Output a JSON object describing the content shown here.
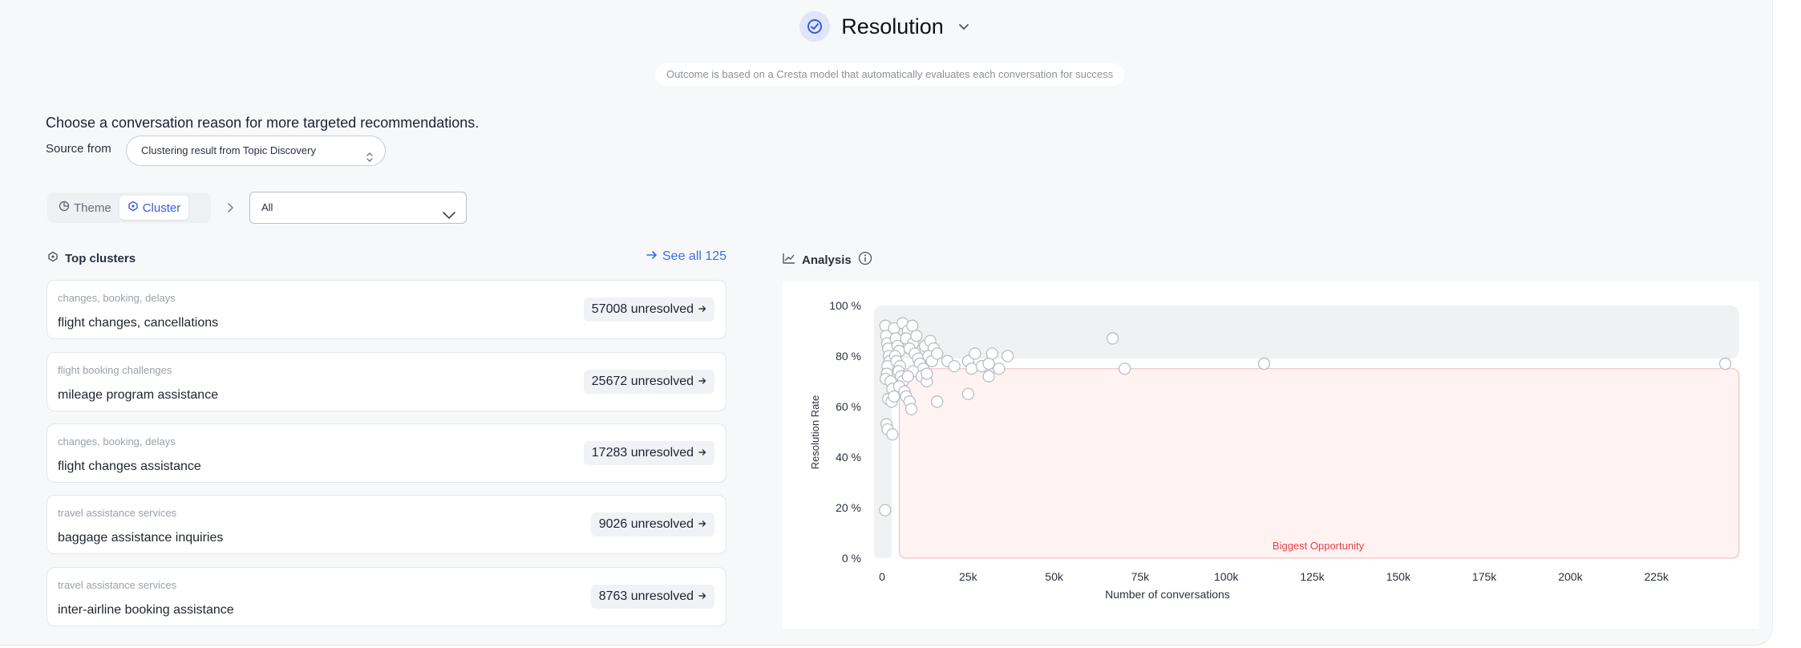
{
  "header": {
    "title": "Resolution",
    "icon": "check-badge-icon",
    "subtitle": "Outcome is based on a Cresta model that automatically evaluates each conversation for success"
  },
  "filters": {
    "prompt": "Choose a conversation reason for more targeted recommendations.",
    "source_label": "Source from",
    "source_value": "Clustering result from Topic Discovery",
    "toggle": [
      {
        "label": "Theme",
        "icon": "theme-icon",
        "active": false
      },
      {
        "label": "Cluster",
        "icon": "cluster-icon",
        "active": true
      }
    ],
    "cluster_select_value": "All"
  },
  "clusters": {
    "title": "Top clusters",
    "see_all": "See all 125",
    "items": [
      {
        "theme": "changes, booking, delays",
        "name": "flight changes, cancellations",
        "count": "57008 unresolved"
      },
      {
        "theme": "flight booking challenges",
        "name": "mileage program assistance",
        "count": "25672 unresolved"
      },
      {
        "theme": "changes, booking, delays",
        "name": "flight changes assistance",
        "count": "17283 unresolved"
      },
      {
        "theme": "travel assistance services",
        "name": "baggage assistance inquiries",
        "count": "9026 unresolved"
      },
      {
        "theme": "travel assistance services",
        "name": "inter-airline booking assistance",
        "count": "8763 unresolved"
      }
    ]
  },
  "analysis": {
    "title": "Analysis"
  },
  "chart_data": {
    "type": "scatter",
    "xlabel": "Number of conversations",
    "ylabel": "Resolution Rate",
    "xlim": [
      0,
      250000
    ],
    "ylim": [
      0,
      100
    ],
    "x_ticks": [
      "0",
      "25k",
      "50k",
      "75k",
      "100k",
      "125k",
      "150k",
      "175k",
      "200k",
      "225k"
    ],
    "y_ticks": [
      "0 %",
      "20 %",
      "40 %",
      "60 %",
      "80 %",
      "100 %"
    ],
    "annotations": [
      "Biggest Opportunity"
    ],
    "opportunity_region": {
      "x_min": 5000,
      "x_max": 249000,
      "y_min": 0,
      "y_max": 75
    },
    "high_region": {
      "x_min": 0,
      "x_max": 249000,
      "y_min": 79,
      "y_max": 100
    },
    "points": [
      [
        1000,
        92
      ],
      [
        1200,
        88
      ],
      [
        1500,
        85
      ],
      [
        1800,
        83
      ],
      [
        2000,
        80
      ],
      [
        2200,
        78
      ],
      [
        1600,
        76
      ],
      [
        1400,
        73
      ],
      [
        1100,
        71
      ],
      [
        2500,
        70
      ],
      [
        3000,
        67
      ],
      [
        1800,
        63
      ],
      [
        2800,
        62
      ],
      [
        3500,
        64
      ],
      [
        1300,
        53
      ],
      [
        1600,
        51
      ],
      [
        3000,
        49
      ],
      [
        900,
        19
      ],
      [
        3500,
        91
      ],
      [
        4000,
        87
      ],
      [
        4500,
        84
      ],
      [
        5000,
        82
      ],
      [
        3800,
        80
      ],
      [
        4200,
        78
      ],
      [
        5200,
        76
      ],
      [
        4800,
        74
      ],
      [
        5500,
        72
      ],
      [
        6000,
        70
      ],
      [
        5000,
        68
      ],
      [
        6500,
        66
      ],
      [
        7000,
        64
      ],
      [
        8000,
        62
      ],
      [
        8500,
        59
      ],
      [
        6000,
        93
      ],
      [
        7500,
        90
      ],
      [
        8800,
        92
      ],
      [
        7000,
        87
      ],
      [
        9000,
        85
      ],
      [
        10000,
        88
      ],
      [
        8000,
        83
      ],
      [
        9500,
        81
      ],
      [
        10500,
        79
      ],
      [
        11000,
        77
      ],
      [
        12000,
        75
      ],
      [
        9000,
        74
      ],
      [
        11500,
        72
      ],
      [
        13000,
        70
      ],
      [
        7500,
        72
      ],
      [
        12500,
        84
      ],
      [
        14000,
        86
      ],
      [
        15000,
        83
      ],
      [
        13500,
        80
      ],
      [
        14500,
        78
      ],
      [
        16000,
        81
      ],
      [
        13000,
        73
      ],
      [
        16000,
        62
      ],
      [
        19000,
        78
      ],
      [
        21000,
        76
      ],
      [
        25000,
        78
      ],
      [
        26000,
        75
      ],
      [
        27000,
        81
      ],
      [
        29000,
        76
      ],
      [
        31000,
        77
      ],
      [
        32000,
        81
      ],
      [
        34000,
        75
      ],
      [
        31000,
        72
      ],
      [
        25000,
        65
      ],
      [
        36500,
        80
      ],
      [
        67000,
        87
      ],
      [
        70500,
        75
      ],
      [
        111000,
        77
      ],
      [
        245000,
        77
      ]
    ]
  }
}
